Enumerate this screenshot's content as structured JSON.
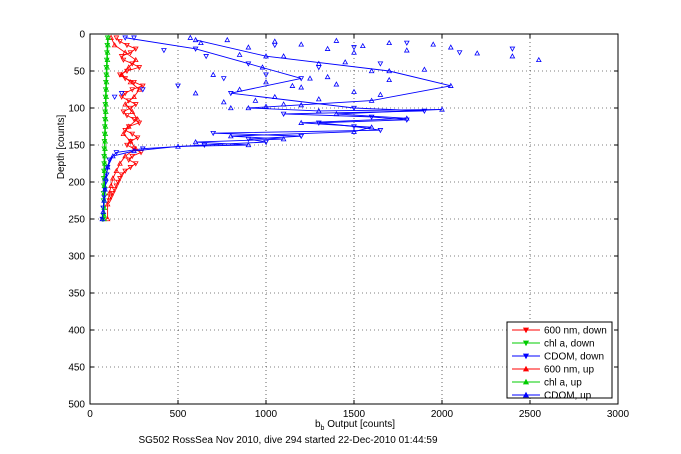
{
  "chart_data": {
    "type": "scatter",
    "title": "",
    "xlabel_main": "b",
    "xlabel_sub": "b",
    "xlabel_rest": " Output [counts]",
    "ylabel": "Depth [counts]",
    "caption": "SG502 RossSea Nov 2010, dive 294 started 22-Dec-2010 01:44:59",
    "xlim": [
      0,
      3000
    ],
    "ylim": [
      0,
      500
    ],
    "y_reversed": true,
    "grid": true,
    "legend_position": "bottom-right",
    "x_ticks": [
      "0",
      "500",
      "1000",
      "1500",
      "2000",
      "2500",
      "3000"
    ],
    "y_ticks": [
      "0",
      "50",
      "100",
      "150",
      "200",
      "250",
      "300",
      "350",
      "400",
      "450",
      "500"
    ],
    "series": [
      {
        "name": "600 nm, down",
        "color": "#ff0000",
        "marker": "triangle-down",
        "connected": true,
        "x": [
          150,
          170,
          210,
          260,
          230,
          180,
          190,
          240,
          280,
          210,
          170,
          200,
          250,
          300,
          240,
          200,
          180,
          220,
          260,
          230,
          190,
          210,
          250,
          280,
          220,
          200,
          240,
          270,
          230,
          210,
          250,
          290,
          240,
          220,
          260,
          230,
          200,
          180,
          170,
          160,
          150,
          140,
          130,
          120,
          110
        ],
        "y": [
          5,
          10,
          15,
          20,
          25,
          30,
          35,
          40,
          45,
          50,
          55,
          60,
          65,
          70,
          75,
          80,
          85,
          90,
          95,
          100,
          105,
          110,
          115,
          120,
          125,
          130,
          135,
          140,
          145,
          150,
          155,
          160,
          165,
          170,
          175,
          180,
          185,
          190,
          195,
          200,
          205,
          210,
          215,
          220,
          225
        ]
      },
      {
        "name": "chl a, down",
        "color": "#00cc00",
        "marker": "triangle-down",
        "connected": true,
        "x": [
          100,
          98,
          96,
          95,
          93,
          92,
          90,
          89,
          88,
          87,
          86,
          85,
          84,
          83,
          82,
          81,
          80,
          80,
          79,
          78,
          78,
          77,
          77,
          76,
          76,
          75
        ],
        "y": [
          5,
          15,
          25,
          35,
          45,
          55,
          65,
          75,
          85,
          95,
          105,
          115,
          125,
          135,
          145,
          155,
          165,
          175,
          185,
          195,
          205,
          215,
          225,
          235,
          245,
          250
        ]
      },
      {
        "name": "CDOM, down",
        "color": "#0000ff",
        "marker": "triangle-down",
        "connected": true,
        "x": [
          200,
          600,
          900,
          1200,
          800,
          1500,
          1900,
          1100,
          1600,
          1800,
          1300,
          1500,
          1650,
          700,
          1200,
          900,
          1000,
          650,
          300,
          150,
          110,
          100,
          95,
          90,
          85,
          80,
          75,
          70
        ],
        "y": [
          5,
          20,
          40,
          60,
          80,
          100,
          104,
          108,
          112,
          116,
          120,
          125,
          130,
          134,
          138,
          142,
          146,
          150,
          155,
          160,
          170,
          180,
          190,
          200,
          210,
          220,
          235,
          250
        ]
      },
      {
        "name": "600 nm, up",
        "color": "#ff0000",
        "marker": "triangle-up",
        "connected": true,
        "x": [
          120,
          140,
          200,
          260,
          220,
          180,
          230,
          280,
          250,
          200,
          240,
          270,
          220,
          190,
          230,
          260,
          200,
          170,
          150,
          130,
          120,
          110,
          100,
          100
        ],
        "y": [
          5,
          15,
          25,
          35,
          45,
          55,
          65,
          75,
          85,
          95,
          105,
          115,
          125,
          135,
          145,
          155,
          165,
          175,
          185,
          195,
          205,
          215,
          230,
          250
        ]
      },
      {
        "name": "chl a, up",
        "color": "#00cc00",
        "marker": "triangle-up",
        "connected": true,
        "x": [
          104,
          102,
          100,
          99,
          97,
          96,
          94,
          93,
          92,
          91,
          90,
          89,
          88,
          87,
          86,
          85,
          85,
          84,
          83,
          83,
          82,
          82,
          81,
          81,
          80,
          80
        ],
        "y": [
          5,
          15,
          25,
          35,
          45,
          55,
          65,
          75,
          85,
          95,
          105,
          115,
          125,
          135,
          145,
          155,
          165,
          175,
          185,
          195,
          205,
          215,
          225,
          235,
          245,
          250
        ]
      },
      {
        "name": "CDOM, up",
        "color": "#0000ff",
        "marker": "triangle-up",
        "connected": true,
        "x": [
          600,
          1000,
          1700,
          2050,
          1600,
          900,
          1300,
          2000,
          1400,
          1800,
          1200,
          1600,
          1500,
          800,
          1100,
          600,
          900,
          500,
          250,
          130,
          100,
          90,
          85,
          80,
          75,
          70
        ],
        "y": [
          8,
          30,
          50,
          70,
          90,
          100,
          104,
          102,
          108,
          114,
          120,
          126,
          132,
          138,
          142,
          146,
          150,
          152,
          158,
          165,
          180,
          195,
          210,
          225,
          240,
          250
        ]
      },
      {
        "name": "",
        "color": "#0000ff",
        "marker": "triangle-up",
        "connected": false,
        "x": [
          570,
          630,
          780,
          900,
          1050,
          1200,
          1350,
          1400,
          1550,
          1700,
          1800,
          1950,
          2050,
          2200,
          2400,
          2550,
          1100,
          1500,
          1300,
          850,
          980,
          1450,
          1600,
          700,
          1250,
          1900,
          1000,
          1150,
          1350,
          1700,
          850,
          600,
          1050,
          1200,
          1400,
          940,
          1300,
          1100,
          760,
          1500,
          1650,
          1000,
          800,
          1200
        ],
        "y": [
          5,
          12,
          8,
          18,
          10,
          14,
          20,
          9,
          16,
          12,
          22,
          14,
          18,
          26,
          30,
          35,
          30,
          25,
          40,
          28,
          45,
          38,
          50,
          55,
          60,
          48,
          65,
          70,
          58,
          62,
          75,
          80,
          85,
          72,
          68,
          90,
          88,
          95,
          92,
          78,
          82,
          98,
          100,
          96
        ]
      },
      {
        "name": "",
        "color": "#0000ff",
        "marker": "triangle-down",
        "connected": false,
        "x": [
          250,
          420,
          660,
          1050,
          1500,
          1800,
          2100,
          2400,
          1650,
          1300,
          1000,
          760,
          500,
          300,
          180,
          140
        ],
        "y": [
          5,
          22,
          30,
          15,
          18,
          12,
          25,
          20,
          40,
          45,
          55,
          60,
          70,
          75,
          80,
          85
        ]
      }
    ]
  }
}
